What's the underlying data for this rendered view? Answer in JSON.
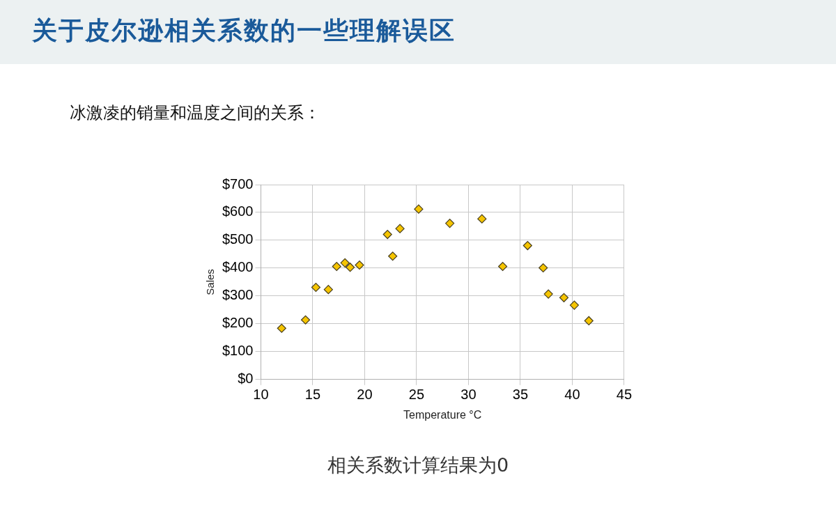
{
  "chart_data": {
    "type": "scatter",
    "title": "关于皮尔逊相关系数的一些理解误区",
    "subtitle": "冰激凌的销量和温度之间的关系：",
    "xlabel": "Temperature °C",
    "ylabel": "Sales",
    "annotations": [
      "相关系数计算结果为0"
    ],
    "x": [
      12,
      14.3,
      15.3,
      16.5,
      17.3,
      18.1,
      18.6,
      19.5,
      22.2,
      22.7,
      23.4,
      25.2,
      28.2,
      31.3,
      33.3,
      35.7,
      37.2,
      37.7,
      39.2,
      40.2,
      41.6
    ],
    "series": [
      {
        "color": "#f5c400",
        "values": [
          184,
          214,
          331,
          323,
          406,
          419,
          403,
          411,
          521,
          443,
          542,
          612,
          561,
          577,
          406,
          481,
          401,
          307,
          294,
          267,
          211
        ]
      }
    ],
    "xlim": [
      10,
      45
    ],
    "xticks": [
      10,
      15,
      20,
      25,
      30,
      35,
      40,
      45
    ],
    "ylim": [
      0,
      700
    ],
    "yticks": [
      {
        "value": 0,
        "label": "$0"
      },
      {
        "value": 100,
        "label": "$100"
      },
      {
        "value": 200,
        "label": "$200"
      },
      {
        "value": 300,
        "label": "$300"
      },
      {
        "value": 400,
        "label": "$400"
      },
      {
        "value": 500,
        "label": "$500"
      },
      {
        "value": 600,
        "label": "$600"
      },
      {
        "value": 700,
        "label": "$700"
      }
    ],
    "grid": true,
    "legend": false,
    "marker": "diamond"
  }
}
